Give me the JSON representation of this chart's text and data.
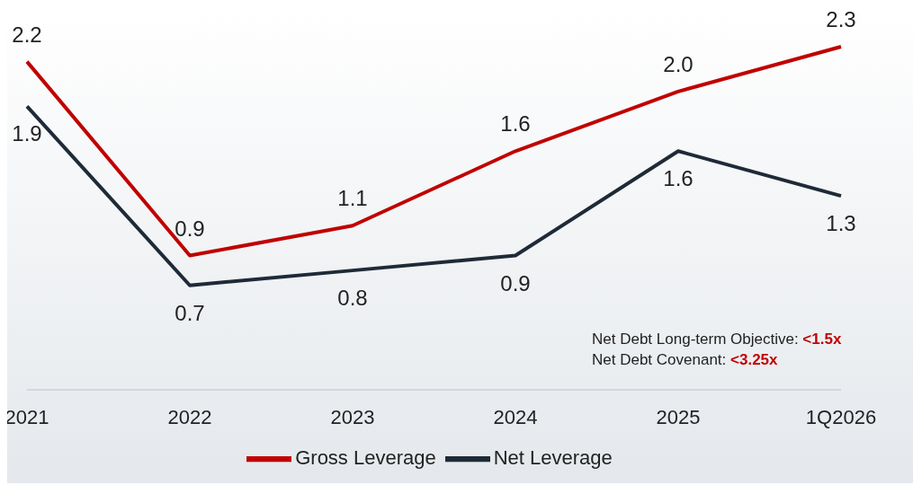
{
  "chart_data": {
    "type": "line",
    "categories": [
      "2021",
      "2022",
      "2023",
      "2024",
      "2025",
      "1Q2026"
    ],
    "series": [
      {
        "name": "Gross Leverage",
        "color": "#c00000",
        "values": [
          2.2,
          0.9,
          1.1,
          1.6,
          2.0,
          2.3
        ],
        "value_labels": [
          "2.2",
          "0.9",
          "1.1",
          "1.6",
          "2.0",
          "2.3"
        ]
      },
      {
        "name": "Net Leverage",
        "color": "#1f2a38",
        "values": [
          1.9,
          0.7,
          0.8,
          0.9,
          1.6,
          1.3
        ],
        "value_labels": [
          "1.9",
          "0.7",
          "0.8",
          "0.9",
          "1.6",
          "1.3"
        ]
      }
    ],
    "grid": false,
    "legend": "bottom",
    "marker": "none",
    "line_style": "solid",
    "annotations": [
      "Net Debt Long-term Objective: <1.5x",
      "Net Debt Covenant: <3.25x"
    ]
  }
}
